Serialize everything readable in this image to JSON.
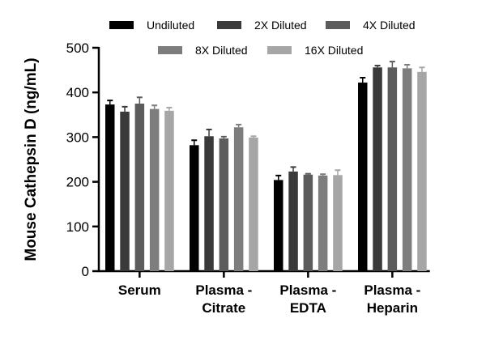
{
  "chart_data": {
    "type": "bar",
    "title": "",
    "xlabel": "",
    "ylabel": "Mouse Cathepsin D (ng/mL)",
    "ylim": [
      0,
      500
    ],
    "yticks": [
      "0",
      "100",
      "200",
      "300",
      "400",
      "500"
    ],
    "categories": [
      [
        "Serum"
      ],
      [
        "Plasma -",
        "Citrate"
      ],
      [
        "Plasma -",
        "EDTA"
      ],
      [
        "Plasma -",
        "Heparin"
      ]
    ],
    "series": [
      {
        "name": "Undiluted",
        "color": "#000000",
        "values": [
          373,
          282,
          204,
          422
        ],
        "errors": [
          9,
          11,
          10,
          11
        ]
      },
      {
        "name": "2X Diluted",
        "color": "#3a3a3a",
        "values": [
          357,
          302,
          223,
          456
        ],
        "errors": [
          11,
          15,
          10,
          4
        ]
      },
      {
        "name": "4X Diluted",
        "color": "#5c5c5c",
        "values": [
          375,
          297,
          216,
          456
        ],
        "errors": [
          14,
          4,
          2,
          13
        ]
      },
      {
        "name": "8X Diluted",
        "color": "#7d7d7d",
        "values": [
          363,
          322,
          214,
          454
        ],
        "errors": [
          8,
          6,
          3,
          8
        ]
      },
      {
        "name": "16X Diluted",
        "color": "#a6a6a6",
        "values": [
          359,
          299,
          215,
          446
        ],
        "errors": [
          7,
          3,
          11,
          10
        ]
      }
    ],
    "legend_position": "top",
    "grid": false
  }
}
